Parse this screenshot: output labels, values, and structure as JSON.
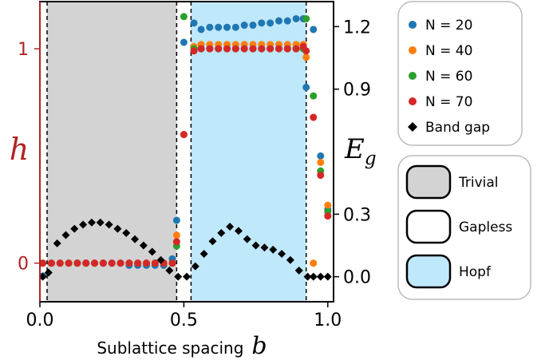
{
  "colors": {
    "left_axis": "#b22222",
    "trivial_fill": "#d3d3d3",
    "hopf_fill": "#bfe8fb",
    "n20": "#1f77b4",
    "n40": "#ff7f0e",
    "n60": "#2ca02c",
    "n70": "#d62728",
    "band_gap": "#000000"
  },
  "chart_data": {
    "type": "scatter",
    "xlabel_text": "Sublattice spacing",
    "xlabel_symbol": "b",
    "ylabel_left": "h",
    "ylabel_right_base": "E",
    "ylabel_right_sub": "g",
    "xlim": [
      0.0,
      1.02
    ],
    "ylim_left": [
      -0.18,
      1.22
    ],
    "ylim_right": [
      -0.12,
      1.32
    ],
    "x_ticks": [
      "0.0",
      "0.5",
      "1.0"
    ],
    "y_ticks_left": [
      "0",
      "1"
    ],
    "y_ticks_right": [
      "0.0",
      "0.3",
      "0.9",
      "1.2"
    ],
    "phase_regions": [
      {
        "phase": "trivial",
        "x": [
          0.025,
          0.475
        ]
      },
      {
        "phase": "gapless",
        "x": [
          0.475,
          0.525
        ]
      },
      {
        "phase": "hopf",
        "x": [
          0.525,
          0.925
        ]
      }
    ],
    "dashed_lines_x": [
      0.025,
      0.475,
      0.525,
      0.925
    ],
    "series": [
      {
        "name": "N = 20",
        "color_key": "n20",
        "axis": "left",
        "points": [
          [
            0.01,
            -0.06
          ],
          [
            0.04,
            0.0
          ],
          [
            0.07,
            0.0
          ],
          [
            0.1,
            0.0
          ],
          [
            0.13,
            0.0
          ],
          [
            0.16,
            0.0
          ],
          [
            0.19,
            0.0
          ],
          [
            0.22,
            0.0
          ],
          [
            0.25,
            0.0
          ],
          [
            0.28,
            0.0
          ],
          [
            0.31,
            -0.01
          ],
          [
            0.34,
            -0.01
          ],
          [
            0.37,
            -0.01
          ],
          [
            0.4,
            -0.01
          ],
          [
            0.43,
            -0.01
          ],
          [
            0.46,
            0.02
          ],
          [
            0.475,
            0.2
          ],
          [
            0.5,
            1.03
          ],
          [
            0.535,
            1.12
          ],
          [
            0.56,
            1.09
          ],
          [
            0.59,
            1.1
          ],
          [
            0.62,
            1.1
          ],
          [
            0.65,
            1.1
          ],
          [
            0.68,
            1.1
          ],
          [
            0.71,
            1.11
          ],
          [
            0.74,
            1.11
          ],
          [
            0.77,
            1.12
          ],
          [
            0.8,
            1.12
          ],
          [
            0.83,
            1.13
          ],
          [
            0.86,
            1.13
          ],
          [
            0.89,
            1.14
          ],
          [
            0.915,
            1.14
          ],
          [
            0.925,
            0.82
          ],
          [
            0.95,
            1.09
          ],
          [
            0.975,
            0.5
          ],
          [
            1.0,
            0.25
          ]
        ]
      },
      {
        "name": "N = 40",
        "color_key": "n40",
        "axis": "left",
        "points": [
          [
            0.01,
            0.0
          ],
          [
            0.04,
            0.0
          ],
          [
            0.07,
            0.0
          ],
          [
            0.1,
            0.0
          ],
          [
            0.13,
            0.0
          ],
          [
            0.16,
            0.0
          ],
          [
            0.19,
            0.0
          ],
          [
            0.22,
            0.0
          ],
          [
            0.25,
            0.0
          ],
          [
            0.28,
            0.0
          ],
          [
            0.31,
            0.0
          ],
          [
            0.34,
            0.0
          ],
          [
            0.37,
            0.0
          ],
          [
            0.4,
            0.0
          ],
          [
            0.43,
            0.0
          ],
          [
            0.46,
            0.0
          ],
          [
            0.475,
            0.13
          ],
          [
            0.5,
            0.6
          ],
          [
            0.535,
            1.01
          ],
          [
            0.56,
            1.02
          ],
          [
            0.59,
            1.02
          ],
          [
            0.62,
            1.02
          ],
          [
            0.65,
            1.02
          ],
          [
            0.68,
            1.02
          ],
          [
            0.71,
            1.02
          ],
          [
            0.74,
            1.02
          ],
          [
            0.77,
            1.02
          ],
          [
            0.8,
            1.02
          ],
          [
            0.83,
            1.02
          ],
          [
            0.86,
            1.02
          ],
          [
            0.89,
            1.02
          ],
          [
            0.915,
            1.02
          ],
          [
            0.925,
            0.96
          ],
          [
            0.95,
            0.0
          ],
          [
            0.975,
            0.47
          ],
          [
            1.0,
            0.27
          ]
        ]
      },
      {
        "name": "N = 60",
        "color_key": "n60",
        "axis": "left",
        "points": [
          [
            0.01,
            0.0
          ],
          [
            0.04,
            0.0
          ],
          [
            0.07,
            0.0
          ],
          [
            0.1,
            0.0
          ],
          [
            0.13,
            0.0
          ],
          [
            0.16,
            0.0
          ],
          [
            0.19,
            0.0
          ],
          [
            0.22,
            0.0
          ],
          [
            0.25,
            0.0
          ],
          [
            0.28,
            0.0
          ],
          [
            0.31,
            0.0
          ],
          [
            0.34,
            0.0
          ],
          [
            0.37,
            0.0
          ],
          [
            0.4,
            0.0
          ],
          [
            0.43,
            0.0
          ],
          [
            0.46,
            0.0
          ],
          [
            0.475,
            0.08
          ],
          [
            0.5,
            1.15
          ],
          [
            0.535,
            1.0
          ],
          [
            0.56,
            1.0
          ],
          [
            0.59,
            1.0
          ],
          [
            0.62,
            1.0
          ],
          [
            0.65,
            1.0
          ],
          [
            0.68,
            1.0
          ],
          [
            0.71,
            1.0
          ],
          [
            0.74,
            1.0
          ],
          [
            0.77,
            1.0
          ],
          [
            0.8,
            1.0
          ],
          [
            0.83,
            1.0
          ],
          [
            0.86,
            1.0
          ],
          [
            0.89,
            1.0
          ],
          [
            0.915,
            1.0
          ],
          [
            0.925,
            1.14
          ],
          [
            0.95,
            0.78
          ],
          [
            0.975,
            0.43
          ],
          [
            1.0,
            0.24
          ]
        ]
      },
      {
        "name": "N = 70",
        "color_key": "n70",
        "axis": "left",
        "points": [
          [
            0.01,
            0.0
          ],
          [
            0.04,
            0.0
          ],
          [
            0.07,
            0.0
          ],
          [
            0.1,
            0.0
          ],
          [
            0.13,
            0.0
          ],
          [
            0.16,
            0.0
          ],
          [
            0.19,
            0.0
          ],
          [
            0.22,
            0.0
          ],
          [
            0.25,
            0.0
          ],
          [
            0.28,
            0.0
          ],
          [
            0.31,
            0.0
          ],
          [
            0.34,
            0.0
          ],
          [
            0.37,
            0.0
          ],
          [
            0.4,
            0.0
          ],
          [
            0.43,
            0.0
          ],
          [
            0.46,
            0.0
          ],
          [
            0.475,
            0.1
          ],
          [
            0.5,
            0.6
          ],
          [
            0.535,
            0.99
          ],
          [
            0.56,
            1.0
          ],
          [
            0.59,
            1.0
          ],
          [
            0.62,
            1.0
          ],
          [
            0.65,
            1.0
          ],
          [
            0.68,
            1.0
          ],
          [
            0.71,
            1.0
          ],
          [
            0.74,
            1.0
          ],
          [
            0.77,
            1.0
          ],
          [
            0.8,
            1.0
          ],
          [
            0.83,
            1.0
          ],
          [
            0.86,
            1.0
          ],
          [
            0.89,
            1.0
          ],
          [
            0.915,
            1.01
          ],
          [
            0.925,
            0.99
          ],
          [
            0.95,
            0.68
          ],
          [
            0.975,
            0.41
          ],
          [
            1.0,
            0.22
          ]
        ]
      },
      {
        "name": "Band gap",
        "color_key": "band_gap",
        "axis": "right",
        "points": [
          [
            0.01,
            0.0
          ],
          [
            0.03,
            0.02
          ],
          [
            0.06,
            0.16
          ],
          [
            0.09,
            0.2
          ],
          [
            0.12,
            0.23
          ],
          [
            0.15,
            0.25
          ],
          [
            0.18,
            0.26
          ],
          [
            0.21,
            0.26
          ],
          [
            0.24,
            0.25
          ],
          [
            0.27,
            0.23
          ],
          [
            0.3,
            0.21
          ],
          [
            0.33,
            0.18
          ],
          [
            0.36,
            0.15
          ],
          [
            0.39,
            0.12
          ],
          [
            0.42,
            0.08
          ],
          [
            0.45,
            0.03
          ],
          [
            0.48,
            0.0
          ],
          [
            0.51,
            0.0
          ],
          [
            0.54,
            0.05
          ],
          [
            0.57,
            0.11
          ],
          [
            0.6,
            0.17
          ],
          [
            0.63,
            0.21
          ],
          [
            0.66,
            0.24
          ],
          [
            0.69,
            0.22
          ],
          [
            0.72,
            0.18
          ],
          [
            0.75,
            0.15
          ],
          [
            0.78,
            0.14
          ],
          [
            0.81,
            0.13
          ],
          [
            0.84,
            0.11
          ],
          [
            0.87,
            0.08
          ],
          [
            0.9,
            0.03
          ],
          [
            0.93,
            0.0
          ],
          [
            0.95,
            0.0
          ],
          [
            0.975,
            0.0
          ],
          [
            1.0,
            0.0
          ]
        ]
      }
    ],
    "legend_series": [
      "N = 20",
      "N = 40",
      "N = 60",
      "N = 70",
      "Band gap"
    ],
    "legend_phases": [
      {
        "label": "Trivial",
        "color_key": "trivial_fill"
      },
      {
        "label": "Gapless",
        "color_key": "white"
      },
      {
        "label": "Hopf",
        "color_key": "hopf_fill"
      }
    ],
    "legend_placement": "right, outside plot"
  }
}
